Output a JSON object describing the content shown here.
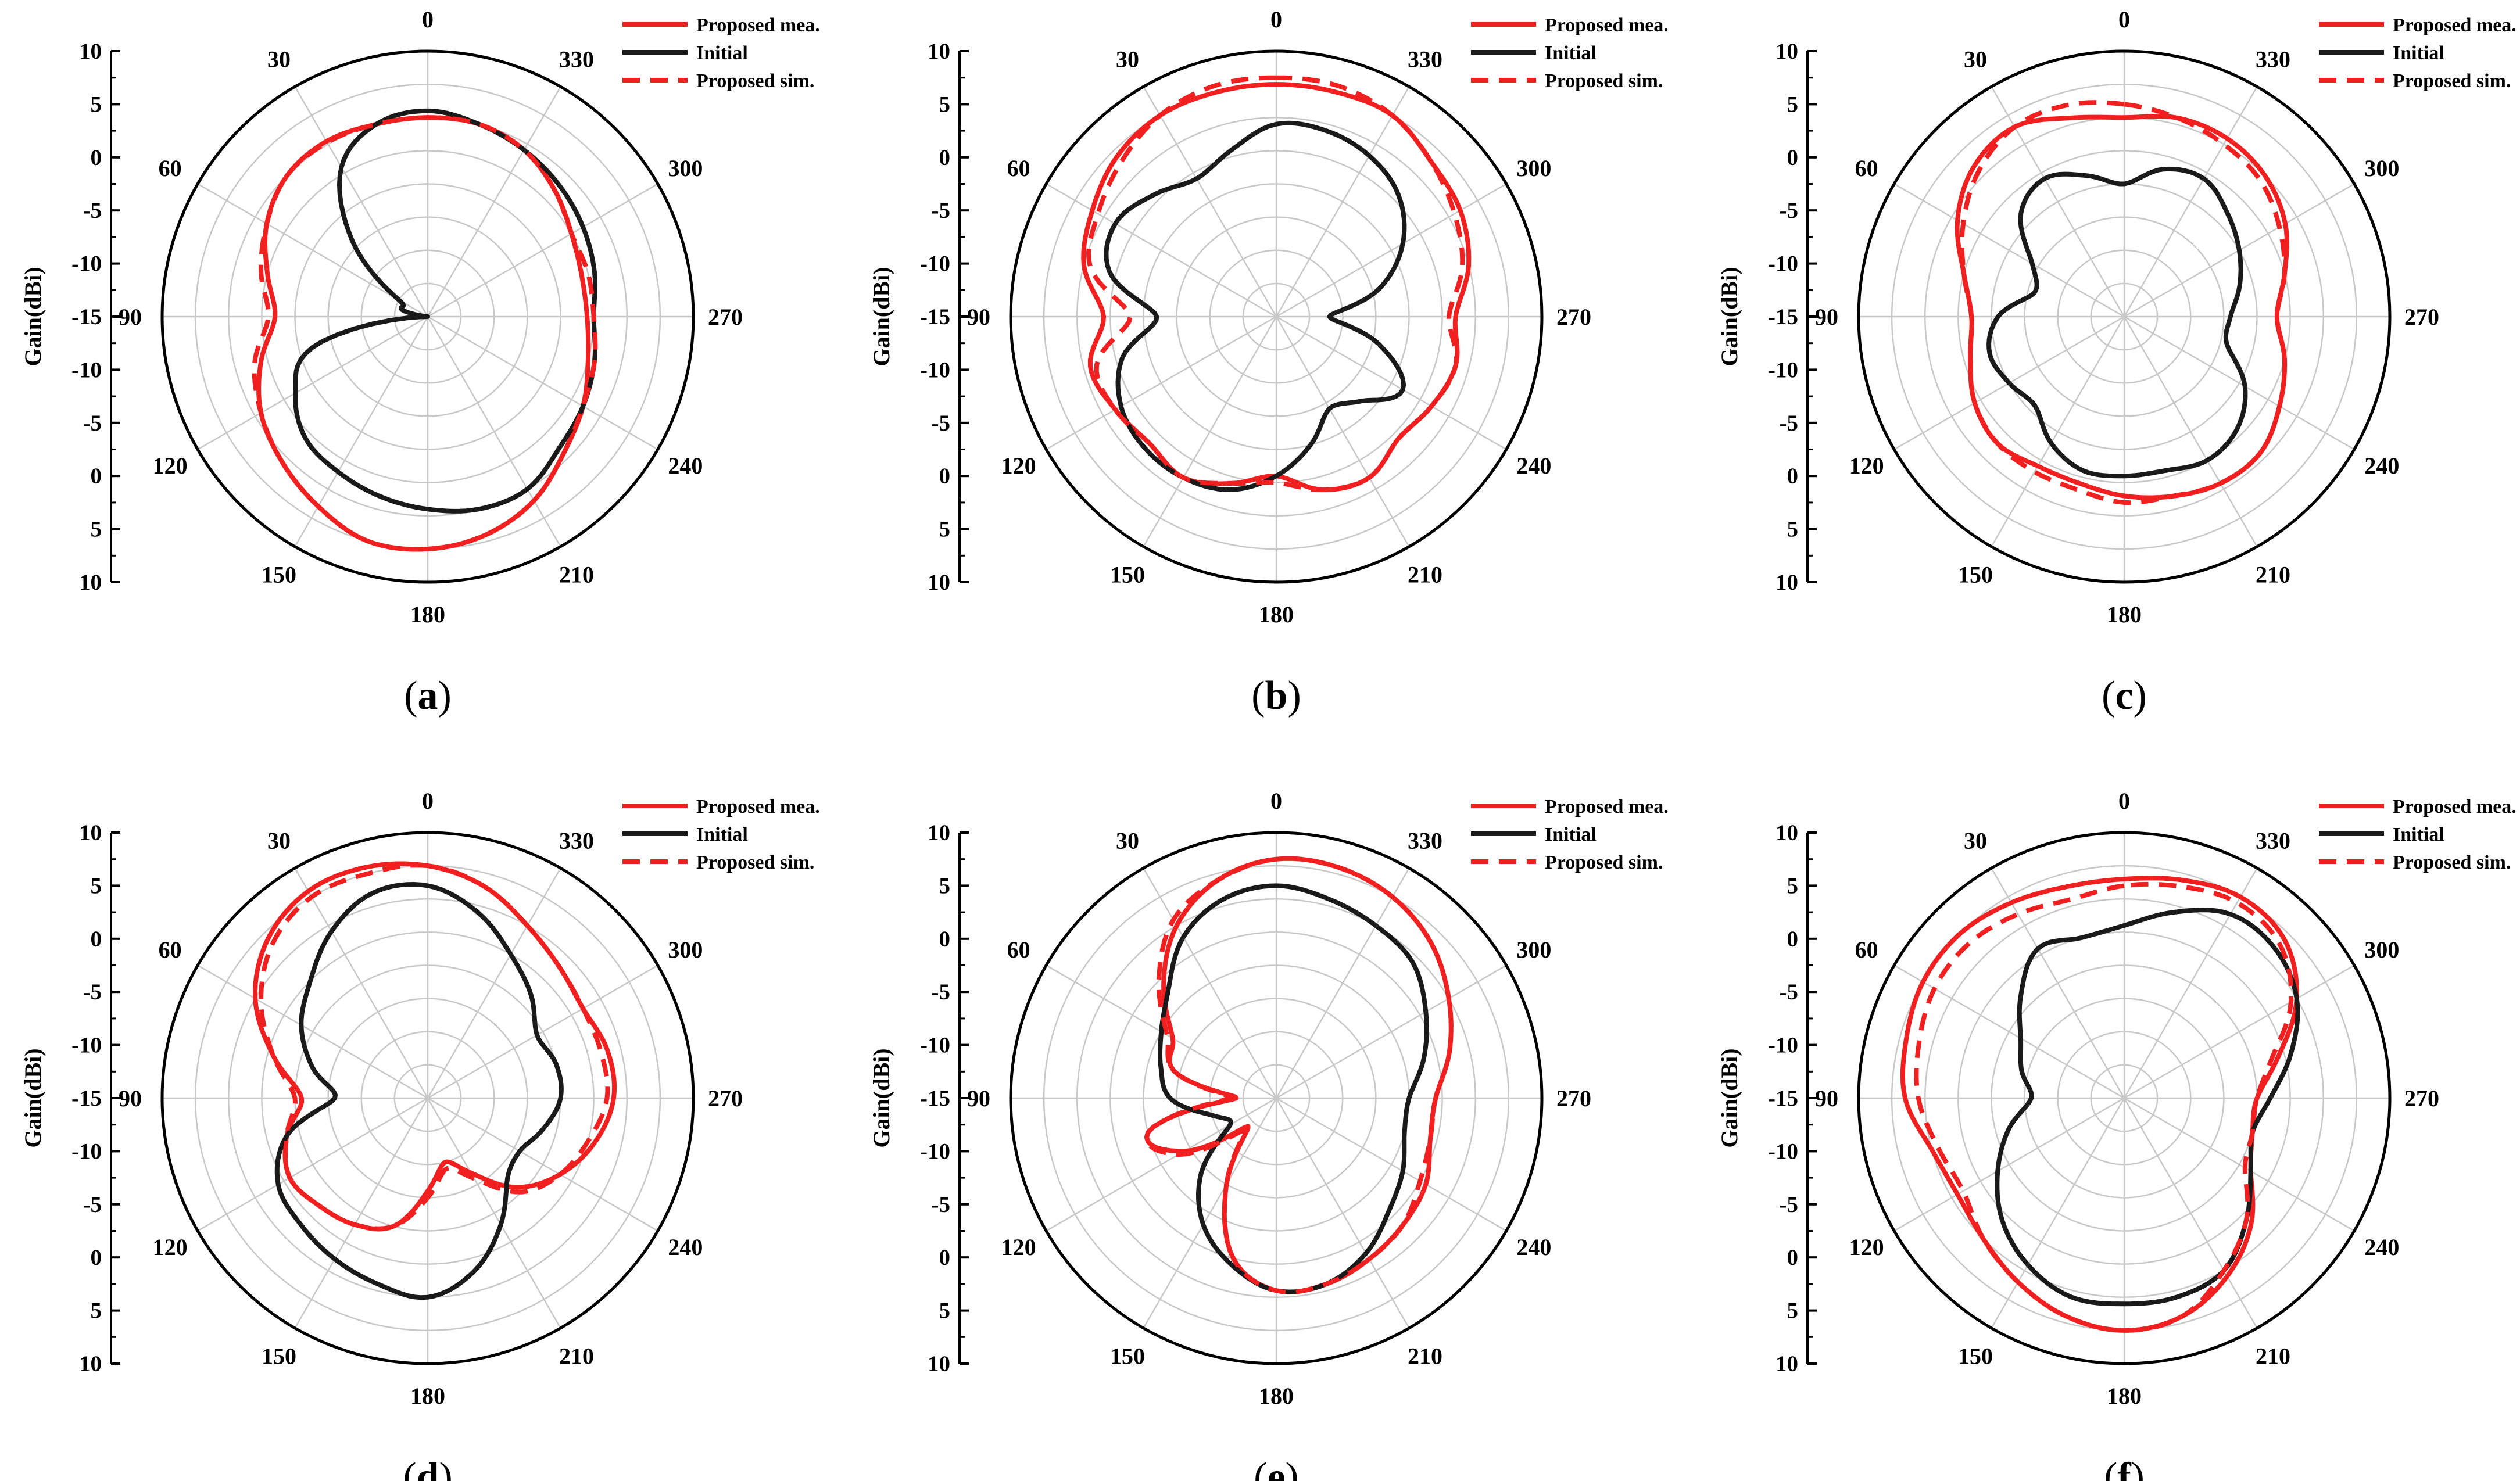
{
  "figure": {
    "description_free": true,
    "colors": {
      "measured": "#f02020",
      "initial": "#1a1a1a",
      "simulated": "#f02020",
      "grid": "#c8c8c8",
      "axis": "#000000"
    }
  },
  "chart_data": [
    {
      "type": "polar-line",
      "panel": "(a)",
      "panel_letter": "a",
      "ylabel": "Gain(dBi)",
      "r_range_db": [
        -30,
        10
      ],
      "r_tick_labels": [
        "10",
        "5",
        "0",
        "-5",
        "-10",
        "-15",
        "-10",
        "-5",
        "0",
        "5",
        "10"
      ],
      "angle_labels": [
        "0",
        "30",
        "60",
        "90",
        "120",
        "150",
        "180",
        "210",
        "240",
        "270",
        "300",
        "330"
      ],
      "legend": [
        "Proposed mea.",
        "Initial",
        "Proposed sim."
      ],
      "theta_deg": [
        0,
        15,
        30,
        45,
        60,
        75,
        90,
        105,
        120,
        135,
        150,
        165,
        180,
        195,
        210,
        225,
        240,
        255,
        270,
        285,
        300,
        315,
        330,
        345
      ],
      "series": [
        {
          "name": "Proposed mea.",
          "style": "solid-red",
          "values": [
            0,
            0,
            0.5,
            0,
            -2,
            -5,
            -7,
            -4,
            -1,
            1,
            3,
            5,
            5,
            4,
            2,
            -1,
            -3,
            -5,
            -6,
            -6,
            -5,
            -3,
            -1,
            0
          ]
        },
        {
          "name": "Initial",
          "style": "solid-black",
          "values": [
            1,
            0,
            -4,
            -14,
            -25,
            -26,
            -30,
            -12,
            -7,
            -4,
            -3,
            -2,
            -1,
            0,
            0,
            -2,
            -3,
            -4,
            -5,
            -4,
            -3,
            -2,
            -1,
            0
          ]
        },
        {
          "name": "Proposed sim.",
          "style": "dashed-red",
          "values": [
            0,
            0,
            0.3,
            0,
            -2,
            -4,
            -6,
            -3,
            -1,
            1,
            3,
            5,
            5,
            4,
            2,
            -1,
            -3,
            -4,
            -5,
            -5,
            -5,
            -3,
            -1,
            0
          ]
        }
      ]
    },
    {
      "type": "polar-line",
      "panel": "(b)",
      "panel_letter": "b",
      "ylabel": "Gain(dBi)",
      "r_range_db": [
        -30,
        10
      ],
      "r_tick_labels": [
        "10",
        "5",
        "0",
        "-5",
        "-10",
        "-15",
        "-10",
        "-5",
        "0",
        "5",
        "10"
      ],
      "angle_labels": [
        "0",
        "30",
        "60",
        "90",
        "120",
        "150",
        "180",
        "210",
        "240",
        "270",
        "300",
        "330"
      ],
      "legend": [
        "Proposed mea.",
        "Initial",
        "Proposed sim."
      ],
      "theta_deg": [
        0,
        15,
        30,
        45,
        60,
        75,
        90,
        105,
        120,
        135,
        150,
        165,
        180,
        195,
        210,
        225,
        240,
        255,
        270,
        285,
        300,
        315,
        330,
        345
      ],
      "series": [
        {
          "name": "Proposed mea.",
          "style": "solid-red",
          "values": [
            5,
            5,
            5,
            4,
            2,
            0,
            -4,
            -1,
            -2,
            -3,
            -2,
            -4,
            -6,
            -3,
            -2,
            -4,
            -3,
            -2,
            -3,
            0,
            2,
            3,
            5,
            5
          ]
        },
        {
          "name": "Initial",
          "style": "solid-black",
          "values": [
            -1,
            -4,
            -6,
            -4,
            -2,
            -4,
            -12,
            -6,
            -3,
            -2,
            -2,
            -3,
            -6,
            -10,
            -14,
            -12,
            -8,
            -14,
            -22,
            -14,
            -8,
            -4,
            -2,
            -1
          ]
        },
        {
          "name": "Proposed sim.",
          "style": "dashed-red",
          "values": [
            6,
            6,
            5,
            3,
            1,
            -1,
            -8,
            -2,
            -2,
            -3,
            -2,
            -4,
            -5,
            -3,
            -2,
            -4,
            -3,
            -2,
            -4,
            -1,
            1,
            3,
            5,
            6
          ]
        }
      ]
    },
    {
      "type": "polar-line",
      "panel": "(c)",
      "panel_letter": "c",
      "ylabel": "Gain(dBi)",
      "r_range_db": [
        -30,
        10
      ],
      "r_tick_labels": [
        "10",
        "5",
        "0",
        "-5",
        "-10",
        "-15",
        "-10",
        "-5",
        "0",
        "5",
        "10"
      ],
      "angle_labels": [
        "0",
        "30",
        "60",
        "90",
        "120",
        "150",
        "180",
        "210",
        "240",
        "270",
        "300",
        "330"
      ],
      "legend": [
        "Proposed mea.",
        "Initial",
        "Proposed sim."
      ],
      "theta_deg": [
        0,
        15,
        30,
        45,
        60,
        75,
        90,
        105,
        120,
        135,
        150,
        165,
        180,
        195,
        210,
        225,
        240,
        255,
        270,
        285,
        300,
        315,
        330,
        345
      ],
      "series": [
        {
          "name": "Proposed mea.",
          "style": "solid-red",
          "values": [
            0,
            1,
            3,
            2,
            -1,
            -5,
            -7,
            -6,
            -4,
            -3,
            -4,
            -4,
            -3,
            -2,
            -1,
            -1,
            -3,
            -5,
            -7,
            -5,
            -2,
            0,
            1,
            1
          ]
        },
        {
          "name": "Initial",
          "style": "solid-black",
          "values": [
            -10,
            -8,
            -6,
            -8,
            -14,
            -16,
            -11,
            -9,
            -10,
            -11,
            -8,
            -6,
            -6,
            -6,
            -5,
            -6,
            -9,
            -14,
            -14,
            -12,
            -10,
            -8,
            -6,
            -7
          ]
        },
        {
          "name": "Proposed sim.",
          "style": "dashed-red",
          "values": [
            2,
            3,
            3,
            1,
            -2,
            -5,
            -7,
            -6,
            -4,
            -3,
            -3,
            -3,
            -2,
            -2,
            -1,
            -1,
            -3,
            -5,
            -7,
            -5,
            -3,
            -1,
            0,
            1
          ]
        }
      ]
    },
    {
      "type": "polar-line",
      "panel": "(d)",
      "panel_letter": "d",
      "ylabel": "Gain(dBi)",
      "r_range_db": [
        -30,
        10
      ],
      "r_tick_labels": [
        "10",
        "5",
        "0",
        "-5",
        "-10",
        "-15",
        "-10",
        "-5",
        "0",
        "5",
        "10"
      ],
      "angle_labels": [
        "0",
        "30",
        "60",
        "90",
        "120",
        "150",
        "180",
        "210",
        "240",
        "270",
        "300",
        "330"
      ],
      "legend": [
        "Proposed mea.",
        "Initial",
        "Proposed sim."
      ],
      "theta_deg": [
        0,
        15,
        30,
        45,
        60,
        75,
        90,
        105,
        120,
        135,
        150,
        165,
        180,
        195,
        210,
        225,
        240,
        255,
        270,
        285,
        300,
        315,
        330,
        345
      ],
      "series": [
        {
          "name": "Proposed mea.",
          "style": "solid-red",
          "values": [
            5,
            6,
            6,
            4,
            0,
            -6,
            -11,
            -8,
            -6,
            -7,
            -8,
            -10,
            -16,
            -20,
            -17,
            -11,
            -7,
            -4,
            -2,
            -2,
            -3,
            -2,
            0,
            3
          ]
        },
        {
          "name": "Initial",
          "style": "solid-black",
          "values": [
            2,
            2,
            -1,
            -5,
            -8,
            -12,
            -16,
            -8,
            -4,
            -3,
            -2,
            -1,
            0,
            -3,
            -8,
            -13,
            -14,
            -12,
            -10,
            -10,
            -11,
            -8,
            -5,
            -1
          ]
        },
        {
          "name": "Proposed sim.",
          "style": "dashed-red",
          "values": [
            5,
            5,
            5,
            3,
            -1,
            -6,
            -10,
            -8,
            -6,
            -7,
            -8,
            -10,
            -15,
            -19,
            -16,
            -10,
            -7,
            -5,
            -3,
            -3,
            -3,
            -2,
            0,
            3
          ]
        }
      ]
    },
    {
      "type": "polar-line",
      "panel": "(e)",
      "panel_letter": "e",
      "ylabel": "Gain(dBi)",
      "r_range_db": [
        -30,
        10
      ],
      "r_tick_labels": [
        "10",
        "5",
        "0",
        "-5",
        "-10",
        "-15",
        "-10",
        "-5",
        "0",
        "5",
        "10"
      ],
      "angle_labels": [
        "0",
        "30",
        "60",
        "90",
        "120",
        "150",
        "180",
        "210",
        "240",
        "270",
        "300",
        "330"
      ],
      "legend": [
        "Proposed mea.",
        "Initial",
        "Proposed sim."
      ],
      "theta_deg": [
        0,
        15,
        30,
        45,
        60,
        75,
        90,
        105,
        120,
        135,
        150,
        165,
        180,
        195,
        210,
        225,
        240,
        255,
        270,
        285,
        300,
        315,
        330,
        345
      ],
      "series": [
        {
          "name": "Proposed mea.",
          "style": "solid-red",
          "values": [
            6,
            4,
            0,
            -6,
            -12,
            -14,
            -24,
            -10,
            -14,
            -24,
            -15,
            -5,
            -1,
            -1,
            -2,
            -3,
            -4,
            -6,
            -6,
            -3,
            0,
            3,
            5,
            6
          ]
        },
        {
          "name": "Initial",
          "style": "solid-black",
          "values": [
            2,
            1,
            -2,
            -7,
            -10,
            -12,
            -14,
            -20,
            -22,
            -14,
            -8,
            -4,
            -1,
            -1,
            -3,
            -6,
            -8,
            -10,
            -10,
            -7,
            -4,
            -1,
            0,
            1
          ]
        },
        {
          "name": "Proposed sim.",
          "style": "dashed-red",
          "values": [
            6,
            4,
            1,
            -5,
            -11,
            -14,
            -23,
            -10,
            -13,
            -23,
            -15,
            -5,
            -1,
            -1,
            -2,
            -3,
            -5,
            -6,
            -6,
            -3,
            0,
            3,
            5,
            6
          ]
        }
      ]
    },
    {
      "type": "polar-line",
      "panel": "(f)",
      "panel_letter": "f",
      "ylabel": "Gain(dBi)",
      "r_range_db": [
        -30,
        10
      ],
      "r_tick_labels": [
        "10",
        "5",
        "0",
        "-5",
        "-10",
        "-15",
        "-10",
        "-5",
        "0",
        "5",
        "10"
      ],
      "angle_labels": [
        "0",
        "30",
        "60",
        "90",
        "120",
        "150",
        "180",
        "210",
        "240",
        "270",
        "300",
        "330"
      ],
      "legend": [
        "Proposed mea.",
        "Initial",
        "Proposed sim."
      ],
      "theta_deg": [
        0,
        15,
        30,
        45,
        60,
        75,
        90,
        105,
        120,
        135,
        150,
        165,
        180,
        195,
        210,
        225,
        240,
        255,
        270,
        285,
        300,
        315,
        330,
        345
      ],
      "series": [
        {
          "name": "Proposed mea.",
          "style": "solid-red",
          "values": [
            3,
            3,
            4,
            5,
            5,
            4,
            3,
            0,
            -1,
            0,
            2,
            4,
            5,
            4,
            1,
            -3,
            -8,
            -10,
            -10,
            -6,
            0,
            4,
            5,
            4
          ]
        },
        {
          "name": "Initial",
          "style": "solid-black",
          "values": [
            -4,
            -5,
            -4,
            -8,
            -12,
            -14,
            -16,
            -12,
            -8,
            -4,
            -1,
            1,
            1,
            1,
            0,
            -4,
            -8,
            -10,
            -8,
            -4,
            0,
            2,
            2,
            -1
          ]
        },
        {
          "name": "Proposed sim.",
          "style": "dashed-red",
          "values": [
            2,
            1,
            2,
            3,
            3,
            2,
            1,
            -1,
            -2,
            0,
            2,
            4,
            5,
            4,
            0,
            -4,
            -9,
            -10,
            -10,
            -7,
            -1,
            3,
            4,
            3
          ]
        }
      ]
    }
  ]
}
